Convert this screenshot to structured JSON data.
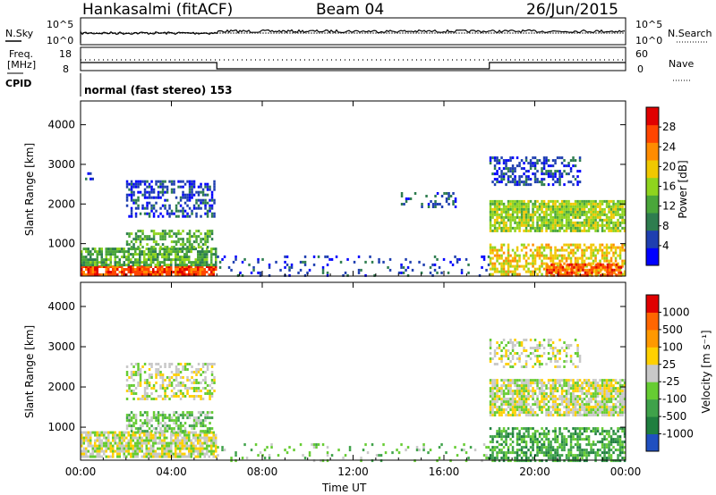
{
  "header": {
    "station": "Hankasalmi (fitACF)",
    "beam": "Beam 04",
    "date": "26/Jun/2015"
  },
  "status_panels": {
    "nsky_label": "N.Sky",
    "nsky_ticks": [
      "10^5",
      "10^0"
    ],
    "nsearch_label": "N.Search",
    "nsearch_ticks": [
      "10^5",
      "10^0"
    ],
    "freq_label_1": "Freq.",
    "freq_label_2": "[MHz]",
    "freq_ticks": [
      "18",
      "8"
    ],
    "nave_label": "Nave",
    "nave_ticks": [
      "60",
      "0"
    ],
    "cpid_label": "CPID",
    "cpid_value": "normal (fast stereo) 153"
  },
  "chart_data": [
    {
      "type": "heatmap",
      "parameter": "power",
      "ylabel": "Slant Range [km]",
      "y_ticks": [
        "4000",
        "3000",
        "2000",
        "1000"
      ],
      "ylim": [
        180,
        4600
      ],
      "colorbar_label": "Power [dB]",
      "colorbar_ticks": [
        "28",
        "24",
        "20",
        "16",
        "12",
        "8",
        "4"
      ],
      "colorbar_colors": [
        "#0000ff",
        "#1f3fb0",
        "#2e7d4f",
        "#4aa63a",
        "#8fd41e",
        "#f0c800",
        "#ff8c00",
        "#ff4500",
        "#e00000"
      ],
      "regions": [
        {
          "t": [
            0.0,
            6.0
          ],
          "r": [
            200,
            450
          ],
          "level": 7,
          "density": 0.85
        },
        {
          "t": [
            0.0,
            6.0
          ],
          "r": [
            450,
            900
          ],
          "level": 3,
          "density": 0.8
        },
        {
          "t": [
            2.0,
            5.8
          ],
          "r": [
            900,
            1350
          ],
          "level": 3,
          "density": 0.6
        },
        {
          "t": [
            2.0,
            5.9
          ],
          "r": [
            1700,
            2600
          ],
          "level": 1,
          "density": 0.5
        },
        {
          "t": [
            0.1,
            0.5
          ],
          "r": [
            2600,
            2800
          ],
          "level": 1,
          "density": 0.4
        },
        {
          "t": [
            6.0,
            18.0
          ],
          "r": [
            200,
            700
          ],
          "level": 1,
          "density": 0.12
        },
        {
          "t": [
            14.0,
            16.5
          ],
          "r": [
            1900,
            2300
          ],
          "level": 1,
          "density": 0.25
        },
        {
          "t": [
            18.0,
            24.0
          ],
          "r": [
            1300,
            2100
          ],
          "level": 4,
          "density": 0.85
        },
        {
          "t": [
            18.0,
            24.0
          ],
          "r": [
            200,
            1000
          ],
          "level": 5,
          "density": 0.6
        },
        {
          "t": [
            20.5,
            23.8
          ],
          "r": [
            200,
            500
          ],
          "level": 7,
          "density": 0.7
        },
        {
          "t": [
            18.0,
            22.0
          ],
          "r": [
            2500,
            3200
          ],
          "level": 1,
          "density": 0.5
        }
      ]
    },
    {
      "type": "heatmap",
      "parameter": "velocity",
      "ylabel": "Slant Range [km]",
      "y_ticks": [
        "4000",
        "3000",
        "2000",
        "1000"
      ],
      "ylim": [
        180,
        4600
      ],
      "xlabel": "Time UT",
      "x_ticks": [
        "00:00",
        "04:00",
        "08:00",
        "12:00",
        "16:00",
        "20:00",
        "00:00"
      ],
      "xlim": [
        0,
        24
      ],
      "colorbar_label": "Velocity [m s⁻¹]",
      "colorbar_ticks": [
        "1000",
        "500",
        "100",
        "25",
        "-25",
        "-100",
        "-500",
        "-1000"
      ],
      "colorbar_colors": [
        "#2050c0",
        "#1f7f3f",
        "#3fa24a",
        "#66cc33",
        "#c8c8c8",
        "#ffd000",
        "#ff9900",
        "#ff6600",
        "#e00000"
      ],
      "regions": [
        {
          "t": [
            0.0,
            6.0
          ],
          "r": [
            300,
            900
          ],
          "level": 4,
          "density": 0.8
        },
        {
          "t": [
            2.0,
            5.8
          ],
          "r": [
            900,
            1400
          ],
          "level": 3,
          "density": 0.6
        },
        {
          "t": [
            2.0,
            5.9
          ],
          "r": [
            1700,
            2600
          ],
          "level": 4,
          "density": 0.5
        },
        {
          "t": [
            6.0,
            18.0
          ],
          "r": [
            200,
            600
          ],
          "level": 3,
          "density": 0.12
        },
        {
          "t": [
            18.0,
            24.0
          ],
          "r": [
            1300,
            2200
          ],
          "level": 4,
          "density": 0.8
        },
        {
          "t": [
            18.0,
            24.0
          ],
          "r": [
            200,
            1000
          ],
          "level": 2,
          "density": 0.6
        },
        {
          "t": [
            18.0,
            22.0
          ],
          "r": [
            2500,
            3200
          ],
          "level": 4,
          "density": 0.4
        }
      ]
    }
  ]
}
